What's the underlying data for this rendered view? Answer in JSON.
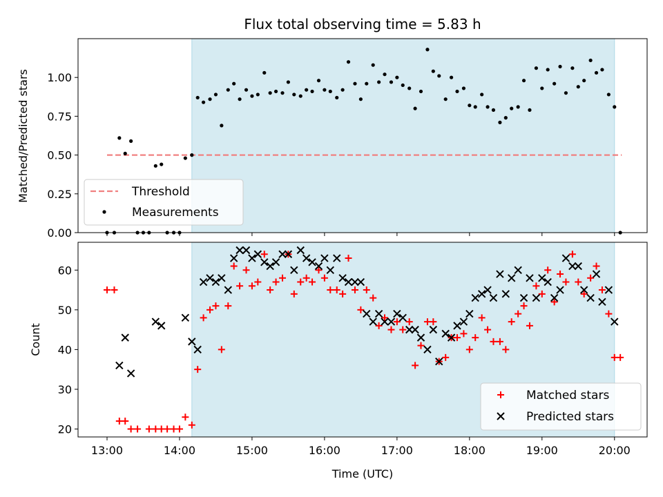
{
  "chart_data": [
    {
      "type": "scatter",
      "title": "Flux total observing time = 5.83 h",
      "xlabel": "",
      "ylabel": "Matched/Predicted stars",
      "xlim_hours": [
        12.6,
        20.45
      ],
      "ylim": [
        0,
        1.25
      ],
      "yticks": [
        0.0,
        0.25,
        0.5,
        0.75,
        1.0
      ],
      "ytick_labels": [
        "0.00",
        "0.25",
        "0.50",
        "0.75",
        "1.00"
      ],
      "shaded_span_hours": [
        14.17,
        20.0
      ],
      "threshold": {
        "name": "Threshold",
        "value": 0.5,
        "x_hours": [
          13.0,
          20.1
        ],
        "color": "#f08080"
      },
      "legend": {
        "position": "lower-left",
        "entries": [
          "Threshold",
          "Measurements"
        ]
      },
      "series": [
        {
          "name": "Measurements",
          "color": "#000000",
          "x": [
            13.0,
            13.1,
            13.17,
            13.25,
            13.33,
            13.42,
            13.5,
            13.58,
            13.67,
            13.75,
            13.83,
            13.92,
            14.0,
            14.08,
            14.17,
            14.25,
            14.33,
            14.42,
            14.5,
            14.58,
            14.67,
            14.75,
            14.83,
            14.92,
            15.0,
            15.08,
            15.17,
            15.25,
            15.33,
            15.42,
            15.5,
            15.58,
            15.67,
            15.75,
            15.83,
            15.92,
            16.0,
            16.08,
            16.17,
            16.25,
            16.33,
            16.42,
            16.5,
            16.58,
            16.67,
            16.75,
            16.83,
            16.92,
            17.0,
            17.08,
            17.17,
            17.25,
            17.33,
            17.42,
            17.5,
            17.58,
            17.67,
            17.75,
            17.83,
            17.92,
            18.0,
            18.08,
            18.17,
            18.25,
            18.33,
            18.42,
            18.5,
            18.58,
            18.67,
            18.75,
            18.83,
            18.92,
            19.0,
            19.08,
            19.17,
            19.25,
            19.33,
            19.42,
            19.5,
            19.58,
            19.67,
            19.75,
            19.83,
            19.92,
            20.0,
            20.08
          ],
          "y": [
            0.0,
            0.0,
            0.61,
            0.51,
            0.59,
            0.0,
            0.0,
            0.0,
            0.43,
            0.44,
            0.0,
            0.0,
            0.0,
            0.48,
            0.5,
            0.87,
            0.84,
            0.86,
            0.89,
            0.69,
            0.92,
            0.96,
            0.86,
            0.92,
            0.88,
            0.89,
            1.03,
            0.9,
            0.91,
            0.9,
            0.97,
            0.89,
            0.88,
            0.92,
            0.91,
            0.98,
            0.92,
            0.91,
            0.87,
            0.92,
            1.1,
            0.96,
            0.86,
            0.96,
            1.08,
            0.97,
            1.02,
            0.97,
            1.0,
            0.95,
            0.93,
            0.8,
            0.91,
            1.18,
            1.04,
            1.01,
            0.86,
            1.0,
            0.91,
            0.93,
            0.82,
            0.81,
            0.89,
            0.81,
            0.79,
            0.71,
            0.74,
            0.8,
            0.81,
            0.98,
            0.79,
            1.06,
            0.93,
            1.05,
            0.96,
            1.07,
            0.9,
            1.06,
            0.94,
            0.98,
            1.11,
            1.03,
            1.05,
            0.89,
            0.81,
            0.0
          ]
        }
      ]
    },
    {
      "type": "scatter",
      "title": "",
      "xlabel": "Time (UTC)",
      "ylabel": "Count",
      "xlim_hours": [
        12.6,
        20.45
      ],
      "ylim": [
        18,
        67
      ],
      "yticks": [
        20,
        30,
        40,
        50,
        60
      ],
      "ytick_labels": [
        "20",
        "30",
        "40",
        "50",
        "60"
      ],
      "xticks_hours": [
        13,
        14,
        15,
        16,
        17,
        18,
        19,
        20
      ],
      "xtick_labels": [
        "13:00",
        "14:00",
        "15:00",
        "16:00",
        "17:00",
        "18:00",
        "19:00",
        "20:00"
      ],
      "shaded_span_hours": [
        14.17,
        20.0
      ],
      "legend": {
        "position": "lower-right",
        "entries": [
          "Matched stars",
          "Predicted stars"
        ]
      },
      "series": [
        {
          "name": "Matched stars",
          "marker": "plus",
          "color": "#ff0000",
          "x": [
            13.0,
            13.1,
            13.17,
            13.25,
            13.33,
            13.42,
            13.58,
            13.67,
            13.75,
            13.83,
            13.92,
            14.0,
            14.08,
            14.17,
            14.25,
            14.33,
            14.42,
            14.5,
            14.58,
            14.67,
            14.75,
            14.83,
            14.92,
            15.0,
            15.08,
            15.17,
            15.25,
            15.33,
            15.42,
            15.5,
            15.58,
            15.67,
            15.75,
            15.83,
            15.92,
            16.0,
            16.08,
            16.17,
            16.25,
            16.33,
            16.42,
            16.5,
            16.58,
            16.67,
            16.75,
            16.83,
            16.92,
            17.0,
            17.08,
            17.17,
            17.25,
            17.33,
            17.42,
            17.5,
            17.58,
            17.67,
            17.75,
            17.83,
            17.92,
            18.0,
            18.08,
            18.17,
            18.25,
            18.33,
            18.42,
            18.5,
            18.58,
            18.67,
            18.75,
            18.83,
            18.92,
            19.0,
            19.08,
            19.17,
            19.25,
            19.33,
            19.42,
            19.5,
            19.58,
            19.67,
            19.75,
            19.83,
            19.92,
            20.0,
            20.08
          ],
          "y": [
            55,
            55,
            22,
            22,
            20,
            20,
            20,
            20,
            20,
            20,
            20,
            20,
            23,
            21,
            35,
            48,
            50,
            51,
            40,
            51,
            61,
            56,
            60,
            56,
            57,
            64,
            55,
            57,
            58,
            64,
            54,
            57,
            58,
            57,
            60,
            58,
            55,
            55,
            54,
            63,
            55,
            50,
            55,
            53,
            46,
            48,
            45,
            47,
            45,
            47,
            36,
            41,
            47,
            47,
            37,
            38,
            43,
            43,
            44,
            40,
            43,
            48,
            45,
            42,
            42,
            40,
            47,
            49,
            51,
            46,
            56,
            54,
            60,
            52,
            59,
            57,
            64,
            57,
            54,
            58,
            61,
            55,
            49,
            38,
            38
          ]
        },
        {
          "name": "Predicted stars",
          "marker": "x",
          "color": "#000000",
          "x": [
            13.17,
            13.25,
            13.33,
            13.67,
            13.75,
            14.08,
            14.17,
            14.25,
            14.33,
            14.42,
            14.5,
            14.58,
            14.67,
            14.75,
            14.83,
            14.92,
            15.0,
            15.08,
            15.17,
            15.25,
            15.33,
            15.42,
            15.5,
            15.58,
            15.67,
            15.75,
            15.83,
            15.92,
            16.0,
            16.08,
            16.17,
            16.25,
            16.33,
            16.42,
            16.5,
            16.58,
            16.67,
            16.75,
            16.83,
            16.92,
            17.0,
            17.08,
            17.17,
            17.25,
            17.33,
            17.42,
            17.5,
            17.58,
            17.67,
            17.75,
            17.83,
            17.92,
            18.0,
            18.08,
            18.17,
            18.25,
            18.33,
            18.42,
            18.5,
            18.58,
            18.67,
            18.75,
            18.83,
            18.92,
            19.0,
            19.08,
            19.17,
            19.25,
            19.33,
            19.42,
            19.5,
            19.58,
            19.67,
            19.75,
            19.83,
            19.92,
            20.0
          ],
          "y": [
            36,
            43,
            34,
            47,
            46,
            48,
            42,
            40,
            57,
            58,
            57,
            58,
            55,
            63,
            65,
            65,
            63,
            64,
            62,
            61,
            62,
            64,
            64,
            60,
            65,
            63,
            62,
            61,
            63,
            60,
            63,
            58,
            57,
            57,
            57,
            49,
            47,
            49,
            47,
            47,
            49,
            48,
            45,
            45,
            43,
            40,
            45,
            37,
            44,
            43,
            46,
            47,
            49,
            53,
            54,
            55,
            53,
            59,
            54,
            58,
            60,
            53,
            58,
            53,
            58,
            57,
            53,
            55,
            63,
            61,
            61,
            55,
            53,
            59,
            52,
            55,
            47
          ]
        }
      ]
    }
  ]
}
